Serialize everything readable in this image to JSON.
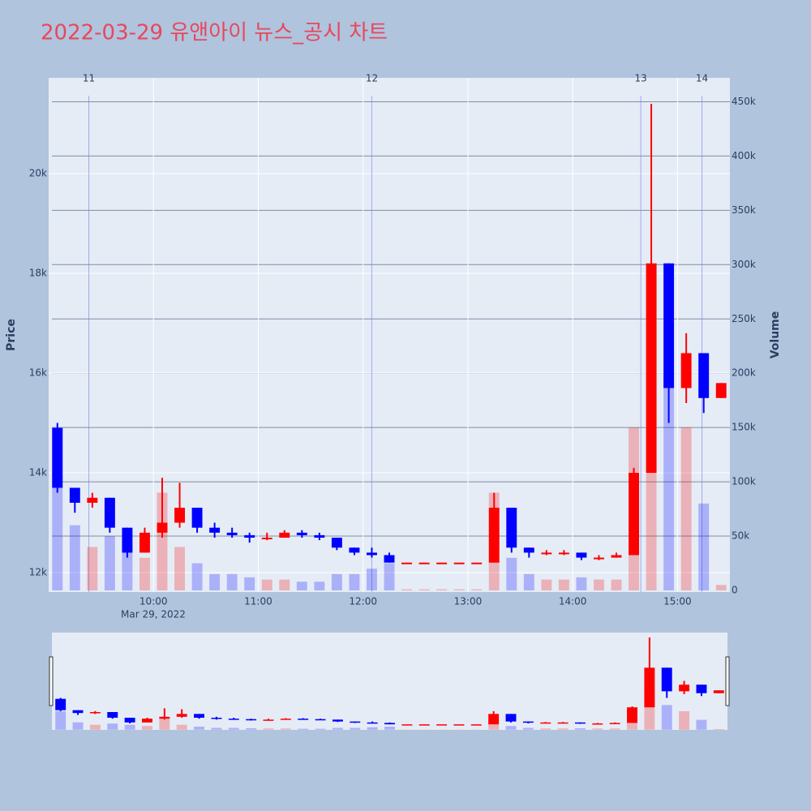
{
  "chart_data": {
    "type": "candlestick",
    "title": "2022-03-29 유앤아이 뉴스_공시 차트",
    "y_label": "Price",
    "y2_label": "Volume",
    "x_date_label": "Mar 29, 2022",
    "increasing_color": "#ff0000",
    "decreasing_color": "#0000ff",
    "x": [
      "2022-03-29 09:00",
      "2022-03-29 09:10",
      "2022-03-29 09:20",
      "2022-03-29 09:30",
      "2022-03-29 09:40",
      "2022-03-29 09:50",
      "2022-03-29 10:00",
      "2022-03-29 10:10",
      "2022-03-29 10:20",
      "2022-03-29 10:30",
      "2022-03-29 10:40",
      "2022-03-29 10:50",
      "2022-03-29 11:00",
      "2022-03-29 11:10",
      "2022-03-29 11:20",
      "2022-03-29 11:30",
      "2022-03-29 11:40",
      "2022-03-29 11:50",
      "2022-03-29 12:00",
      "2022-03-29 12:10",
      "2022-03-29 12:20",
      "2022-03-29 12:30",
      "2022-03-29 12:40",
      "2022-03-29 12:50",
      "2022-03-29 13:00",
      "2022-03-29 13:10",
      "2022-03-29 13:20",
      "2022-03-29 13:30",
      "2022-03-29 13:40",
      "2022-03-29 13:50",
      "2022-03-29 14:00",
      "2022-03-29 14:10",
      "2022-03-29 14:20",
      "2022-03-29 14:30",
      "2022-03-29 14:40",
      "2022-03-29 14:50",
      "2022-03-29 15:00",
      "2022-03-29 15:10",
      "2022-03-29 15:20"
    ],
    "open": [
      14900,
      13700,
      13400,
      13500,
      12900,
      12400,
      12800,
      13000,
      13300,
      12900,
      12800,
      12750,
      12700,
      12700,
      12800,
      12750,
      12700,
      12500,
      12400,
      12350,
      12200,
      12200,
      12200,
      12200,
      12200,
      12200,
      13300,
      12500,
      12400,
      12400,
      12400,
      12300,
      12300,
      12350,
      14000,
      18200,
      15700,
      16400,
      15500
    ],
    "high": [
      15000,
      13700,
      13600,
      13500,
      12900,
      12900,
      13900,
      13800,
      13300,
      13000,
      12900,
      12800,
      12800,
      12850,
      12850,
      12800,
      12700,
      12500,
      12500,
      12400,
      12200,
      12200,
      12200,
      12200,
      12200,
      13600,
      13300,
      12500,
      12450,
      12450,
      12400,
      12350,
      12400,
      14100,
      21400,
      18200,
      16800,
      16400,
      15800
    ],
    "low": [
      13600,
      13200,
      13300,
      12800,
      12300,
      12400,
      12700,
      12900,
      12800,
      12700,
      12700,
      12600,
      12650,
      12700,
      12700,
      12650,
      12450,
      12350,
      12300,
      12200,
      12200,
      12200,
      12200,
      12200,
      12200,
      12200,
      12400,
      12300,
      12350,
      12350,
      12250,
      12250,
      12300,
      12350,
      14000,
      15000,
      15400,
      15200,
      15500
    ],
    "close": [
      13700,
      13400,
      13500,
      12900,
      12400,
      12800,
      13000,
      13300,
      12900,
      12800,
      12750,
      12700,
      12700,
      12800,
      12750,
      12700,
      12500,
      12400,
      12350,
      12200,
      12200,
      12200,
      12200,
      12200,
      12200,
      13300,
      12500,
      12400,
      12400,
      12400,
      12300,
      12300,
      12350,
      14000,
      18200,
      15700,
      16400,
      15500,
      15800
    ],
    "volume": [
      150000,
      60000,
      40000,
      50000,
      40000,
      30000,
      90000,
      40000,
      25000,
      15000,
      15000,
      12000,
      10000,
      10000,
      8000,
      8000,
      15000,
      15000,
      20000,
      25000,
      1000,
      1000,
      1000,
      1000,
      1000,
      90000,
      30000,
      15000,
      10000,
      10000,
      12000,
      10000,
      10000,
      150000,
      300000,
      200000,
      150000,
      80000,
      5000
    ],
    "xlim": [
      "2022-03-29 09:00",
      "2022-03-29 15:30"
    ],
    "xticks": [
      {
        "value": "2022-03-29 10:00",
        "label": "10:00"
      },
      {
        "value": "2022-03-29 11:00",
        "label": "11:00"
      },
      {
        "value": "2022-03-29 12:00",
        "label": "12:00"
      },
      {
        "value": "2022-03-29 13:00",
        "label": "13:00"
      },
      {
        "value": "2022-03-29 14:00",
        "label": "14:00"
      },
      {
        "value": "2022-03-29 15:00",
        "label": "15:00"
      }
    ],
    "ylim": [
      11610,
      21920
    ],
    "yticks": [
      {
        "value": 12000,
        "label": "12k"
      },
      {
        "value": 14000,
        "label": "14k"
      },
      {
        "value": 16000,
        "label": "16k"
      },
      {
        "value": 18000,
        "label": "18k"
      },
      {
        "value": 20000,
        "label": "20k"
      }
    ],
    "y2lim": [
      -1500,
      472000
    ],
    "y2ticks": [
      0,
      {
        "value": 50000,
        "label": "50k"
      },
      {
        "value": 100000,
        "label": "100k"
      },
      {
        "value": 150000,
        "label": "150k"
      },
      {
        "value": 200000,
        "label": "200k"
      },
      {
        "value": 250000,
        "label": "250k"
      },
      {
        "value": 300000,
        "label": "300k"
      },
      {
        "value": 350000,
        "label": "350k"
      },
      {
        "value": 400000,
        "label": "400k"
      },
      {
        "value": 450000,
        "label": "450k"
      }
    ],
    "news": [
      {
        "label": "11",
        "x": "2022-03-29 09:23"
      },
      {
        "label": "12",
        "x": "2022-03-29 12:05"
      },
      {
        "label": "13",
        "x": "2022-03-29 14:39"
      },
      {
        "label": "14",
        "x": "2022-03-29 15:14"
      }
    ],
    "grid": true,
    "range_slider": true
  }
}
